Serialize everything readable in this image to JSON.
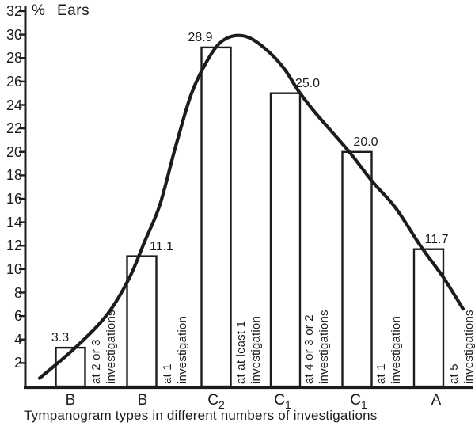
{
  "colors": {
    "ink": "#1c1c1c",
    "background": "#ffffff"
  },
  "figure": {
    "y_unit_label": "%",
    "y_axis_word": "Ears"
  },
  "chart_data": {
    "type": "bar",
    "title": "",
    "ylabel": "% Ears",
    "xlabel": "Tympanogram types in different numbers of investigations",
    "ylim": [
      0,
      32
    ],
    "ytick_interval": 2,
    "yticks": [
      2,
      4,
      6,
      8,
      10,
      12,
      14,
      16,
      18,
      20,
      22,
      24,
      26,
      28,
      30,
      32
    ],
    "grid": false,
    "legend": false,
    "categories": [
      "B",
      "B",
      "C2",
      "C1",
      "C1",
      "A"
    ],
    "categories_display": [
      {
        "base": "B",
        "sub": ""
      },
      {
        "base": "B",
        "sub": ""
      },
      {
        "base": "C",
        "sub": "2"
      },
      {
        "base": "C",
        "sub": "1"
      },
      {
        "base": "C",
        "sub": "1"
      },
      {
        "base": "A",
        "sub": ""
      }
    ],
    "values": [
      3.3,
      11.1,
      28.9,
      25.0,
      20.0,
      11.7
    ],
    "value_labels": [
      "3.3",
      "11.1",
      "28.9",
      "25.0",
      "20.0",
      "11.7"
    ],
    "bar_annotations": [
      [
        "at 2 or 3",
        "investigations"
      ],
      [
        "at 1",
        "investigation"
      ],
      [
        "at at least 1",
        "investigation"
      ],
      [
        "at 4 or 3 or 2",
        "investigations"
      ],
      [
        "at 1",
        "investigation"
      ],
      [
        "at 5",
        "investigations"
      ]
    ],
    "trend_curve": {
      "description": "smooth bell-shaped trend curve overlaid on the bars; points are [x_px, percent_value]",
      "points": [
        [
          50,
          0.7
        ],
        [
          95,
          3.3
        ],
        [
          135,
          6.1
        ],
        [
          163,
          9.2
        ],
        [
          183,
          12.4
        ],
        [
          202,
          15.5
        ],
        [
          222,
          20.5
        ],
        [
          242,
          25.0
        ],
        [
          262,
          27.8
        ],
        [
          278,
          29.3
        ],
        [
          296,
          29.9
        ],
        [
          316,
          29.7
        ],
        [
          340,
          28.5
        ],
        [
          360,
          27.0
        ],
        [
          378,
          25.1
        ],
        [
          400,
          23.2
        ],
        [
          440,
          20.1
        ],
        [
          470,
          17.5
        ],
        [
          500,
          15.2
        ],
        [
          532,
          11.9
        ],
        [
          560,
          9.3
        ],
        [
          585,
          6.6
        ]
      ]
    },
    "caption": "Tympanogram types in different numbers of investigations"
  }
}
